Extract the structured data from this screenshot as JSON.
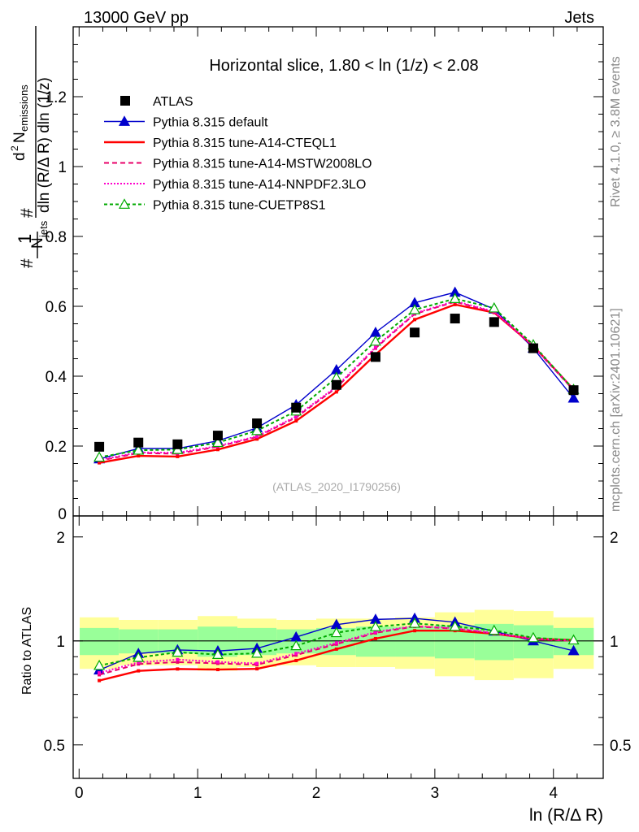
{
  "header": {
    "left": "13000 GeV pp",
    "right": "Jets"
  },
  "side_labels": {
    "rivet": "Rivet 4.1.0, ≥ 3.8M events",
    "mcplots": "mcplots.cern.ch [arXiv:2401.10621]"
  },
  "watermark": "(ATLAS_2020_I1790256)",
  "chart_data": {
    "type": "line",
    "title": "Horizontal slice, 1.80 < ln (1/z) < 2.08",
    "xlabel": "ln (R/Δ R)",
    "ylabel_top": "(1/N_jets) d²N_emissions / dln(R/ΔR) dln(1/z)",
    "ylabel_ratio": "Ratio to ATLAS",
    "xlim": [
      -0.05,
      4.42
    ],
    "ylim_main": [
      0,
      1.4
    ],
    "ylim_ratio": [
      0.4,
      2.3
    ],
    "x_ticks": [
      "0",
      "1",
      "2",
      "3",
      "4"
    ],
    "y_ticks_main": [
      "0.2",
      "0.4",
      "0.6",
      "0.8",
      "1",
      "1.2"
    ],
    "y_tick_main_zero": "0",
    "y_ticks_ratio": [
      "0.5",
      "1",
      "2"
    ],
    "x": [
      0.17,
      0.5,
      0.83,
      1.17,
      1.5,
      1.83,
      2.17,
      2.5,
      2.83,
      3.17,
      3.5,
      3.83,
      4.17
    ],
    "data": {
      "name": "ATLAS",
      "values": [
        0.198,
        0.21,
        0.205,
        0.23,
        0.265,
        0.31,
        0.375,
        0.455,
        0.525,
        0.565,
        0.555,
        0.48,
        0.36
      ]
    },
    "band_outer": [
      0.17,
      0.15,
      0.15,
      0.18,
      0.16,
      0.15,
      0.16,
      0.16,
      0.17,
      0.21,
      0.23,
      0.22,
      0.17
    ],
    "band_inner": [
      0.09,
      0.08,
      0.08,
      0.1,
      0.09,
      0.08,
      0.09,
      0.1,
      0.1,
      0.11,
      0.12,
      0.11,
      0.09
    ],
    "series": [
      {
        "name": "Pythia 8.315 default",
        "color": "#0000cc",
        "dash": "",
        "marker": "triangle-filled",
        "values": [
          0.163,
          0.193,
          0.193,
          0.215,
          0.252,
          0.318,
          0.418,
          0.525,
          0.61,
          0.64,
          0.592,
          0.48,
          0.337
        ]
      },
      {
        "name": "Pythia 8.315 tune-A14-CTEQL1",
        "color": "#ff0000",
        "dash": "",
        "marker": "dot",
        "values": [
          0.152,
          0.172,
          0.17,
          0.19,
          0.22,
          0.272,
          0.355,
          0.462,
          0.562,
          0.605,
          0.582,
          0.487,
          0.362
        ]
      },
      {
        "name": "Pythia 8.315 tune-A14-MSTW2008LO",
        "color": "#e8006a",
        "dash": "6,4",
        "marker": "dot",
        "values": [
          0.158,
          0.18,
          0.178,
          0.198,
          0.226,
          0.282,
          0.367,
          0.48,
          0.578,
          0.613,
          0.583,
          0.485,
          0.36
        ]
      },
      {
        "name": "Pythia 8.315 tune-A14-NNPDF2.3LO",
        "color": "#ff00cc",
        "dash": "2,2",
        "marker": "dot",
        "values": [
          0.16,
          0.182,
          0.181,
          0.2,
          0.228,
          0.285,
          0.37,
          0.483,
          0.58,
          0.615,
          0.585,
          0.487,
          0.361
        ]
      },
      {
        "name": "Pythia 8.315 tune-CUETP8S1",
        "color": "#00aa00",
        "dash": "4,3",
        "marker": "triangle-open",
        "values": [
          0.168,
          0.188,
          0.19,
          0.21,
          0.244,
          0.3,
          0.396,
          0.5,
          0.59,
          0.622,
          0.595,
          0.49,
          0.362
        ]
      }
    ]
  }
}
